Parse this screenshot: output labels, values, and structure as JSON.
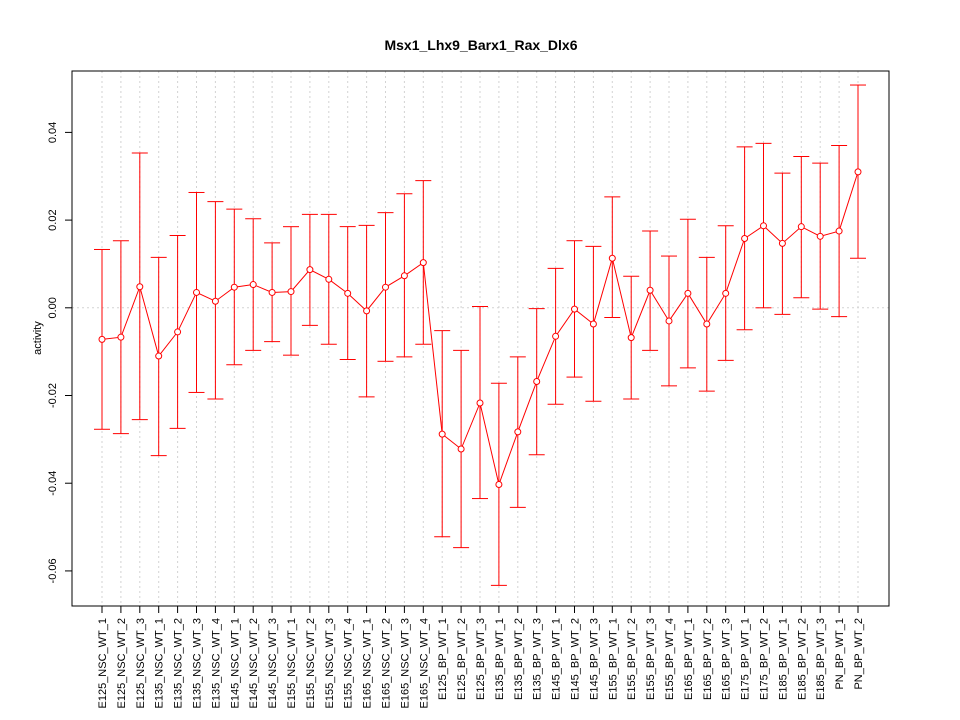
{
  "chart_data": {
    "type": "line",
    "title": "Msx1_Lhx9_Barx1_Rax_Dlx6",
    "xlabel": "",
    "ylabel": "activity",
    "ylim": [
      -0.068,
      0.054
    ],
    "yticks": [
      -0.06,
      -0.04,
      -0.02,
      0.0,
      0.02,
      0.04
    ],
    "ytick_labels": [
      "-0.06",
      "-0.04",
      "-0.02",
      "0.00",
      "0.02",
      "0.04"
    ],
    "grid": true,
    "series_color": "#ff0000",
    "grid_color": "#d3d3d3",
    "categories": [
      "E125_NSC_WT_1",
      "E125_NSC_WT_2",
      "E125_NSC_WT_3",
      "E135_NSC_WT_1",
      "E135_NSC_WT_2",
      "E135_NSC_WT_3",
      "E135_NSC_WT_4",
      "E145_NSC_WT_1",
      "E145_NSC_WT_2",
      "E145_NSC_WT_3",
      "E155_NSC_WT_1",
      "E155_NSC_WT_2",
      "E155_NSC_WT_3",
      "E155_NSC_WT_4",
      "E165_NSC_WT_1",
      "E165_NSC_WT_2",
      "E165_NSC_WT_3",
      "E165_NSC_WT_4",
      "E125_BP_WT_1",
      "E125_BP_WT_2",
      "E125_BP_WT_3",
      "E135_BP_WT_1",
      "E135_BP_WT_2",
      "E135_BP_WT_3",
      "E145_BP_WT_1",
      "E145_BP_WT_2",
      "E145_BP_WT_3",
      "E155_BP_WT_1",
      "E155_BP_WT_2",
      "E155_BP_WT_3",
      "E155_BP_WT_4",
      "E165_BP_WT_1",
      "E165_BP_WT_2",
      "E165_BP_WT_3",
      "E175_BP_WT_1",
      "E175_BP_WT_2",
      "E185_BP_WT_1",
      "E185_BP_WT_2",
      "E185_BP_WT_3",
      "PN_BP_WT_1",
      "PN_BP_WT_2"
    ],
    "values": [
      -0.0072,
      -0.0067,
      0.0048,
      -0.011,
      -0.0055,
      0.0035,
      0.0015,
      0.0047,
      0.0053,
      0.0035,
      0.0037,
      0.0087,
      0.0065,
      0.0033,
      -0.0007,
      0.0047,
      0.0073,
      0.0103,
      -0.0288,
      -0.0322,
      -0.0217,
      -0.0403,
      -0.0283,
      -0.0168,
      -0.0065,
      -0.0003,
      -0.0037,
      0.0113,
      -0.0068,
      0.004,
      -0.003,
      0.0033,
      -0.0037,
      0.0033,
      0.0158,
      0.0187,
      0.0147,
      0.0185,
      0.0163,
      0.0175,
      0.031
    ],
    "upper": [
      0.0133,
      0.0153,
      0.0353,
      0.0115,
      0.0165,
      0.0263,
      0.0242,
      0.0225,
      0.0203,
      0.0148,
      0.0185,
      0.0213,
      0.0213,
      0.0185,
      0.0188,
      0.0217,
      0.026,
      0.029,
      -0.0052,
      -0.0097,
      0.0003,
      -0.0172,
      -0.0112,
      -0.0002,
      0.009,
      0.0153,
      0.014,
      0.0253,
      0.0072,
      0.0175,
      0.0118,
      0.0202,
      0.0115,
      0.0187,
      0.0367,
      0.0375,
      0.0307,
      0.0345,
      0.033,
      0.037,
      0.0508
    ],
    "lower": [
      -0.0277,
      -0.0287,
      -0.0255,
      -0.0337,
      -0.0275,
      -0.0193,
      -0.0208,
      -0.013,
      -0.0097,
      -0.0077,
      -0.0108,
      -0.004,
      -0.0083,
      -0.0118,
      -0.0203,
      -0.0122,
      -0.0112,
      -0.0083,
      -0.0522,
      -0.0547,
      -0.0435,
      -0.0633,
      -0.0455,
      -0.0335,
      -0.022,
      -0.0158,
      -0.0213,
      -0.0022,
      -0.0208,
      -0.0097,
      -0.0178,
      -0.0137,
      -0.019,
      -0.012,
      -0.005,
      0.0,
      -0.0015,
      0.0023,
      -0.0003,
      -0.002,
      0.0113
    ]
  }
}
